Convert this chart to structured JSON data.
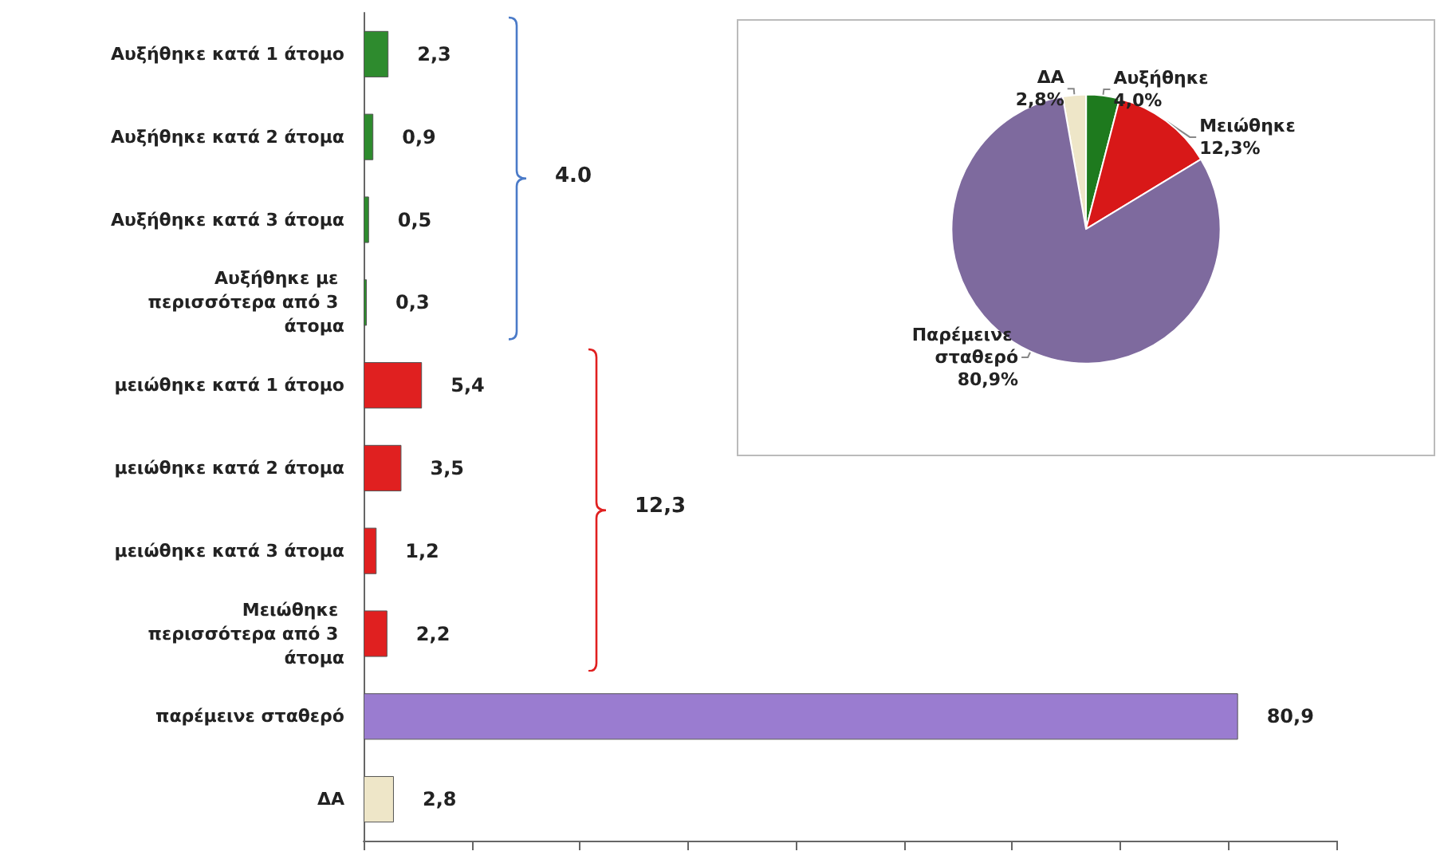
{
  "chart_data": [
    {
      "type": "bar",
      "orientation": "horizontal",
      "categories": [
        "Αυξήθηκε κατά 1 άτομο",
        "Αυξήθηκε κατά 2 άτομα",
        "Αυξήθηκε κατά 3 άτομα",
        "Αυξήθηκε με περισσότερα από 3 άτομα",
        "μειώθηκε κατά 1 άτομο",
        "μειώθηκε κατά 2 άτομα",
        "μειώθηκε κατά 3 άτομα",
        "Μειώθηκε περισσότερα από 3 άτομα",
        "παρέμεινε σταθερό",
        "ΔΑ"
      ],
      "values": [
        2.3,
        0.9,
        0.5,
        0.3,
        5.4,
        3.5,
        1.2,
        2.2,
        80.9,
        2.8
      ],
      "value_labels": [
        "2,3",
        "0,9",
        "0,5",
        "0,3",
        "5,4",
        "3,5",
        "1,2",
        "2,2",
        "80,9",
        "2,8"
      ],
      "colors": [
        "#2e8b2e",
        "#2e8b2e",
        "#2e8b2e",
        "#2e8b2e",
        "#e02020",
        "#e02020",
        "#e02020",
        "#e02020",
        "#9a7cd0",
        "#eee6c8"
      ],
      "xlim": [
        0,
        90
      ],
      "xticks": [
        {
          "value": 0,
          "label": null
        },
        {
          "value": 10,
          "label": null
        },
        {
          "value": 20,
          "label": null
        },
        {
          "value": 30,
          "label": null
        },
        {
          "value": 40,
          "label": null
        },
        {
          "value": 50,
          "label": null
        },
        {
          "value": 60,
          "label": null
        },
        {
          "value": 70,
          "label": null
        },
        {
          "value": 80,
          "label": null
        },
        {
          "value": 90,
          "label": null
        }
      ],
      "tick_labels": "y",
      "grid": false,
      "legend": false,
      "annotations": [
        "4.0",
        "12,3"
      ]
    },
    {
      "type": "pie",
      "categories": [
        "ΔΑ",
        "Αυξήθηκε",
        "Μειώθηκε",
        "Παρέμεινε σταθερό"
      ],
      "values": [
        2.8,
        4.0,
        12.3,
        80.9
      ],
      "value_labels": [
        "2,8%",
        "4,0%",
        "12,3%",
        "80,9%"
      ],
      "colors": [
        "#eee6c8",
        "#1e7a1e",
        "#d81818",
        "#7e6a9e"
      ],
      "legend": false
    }
  ]
}
